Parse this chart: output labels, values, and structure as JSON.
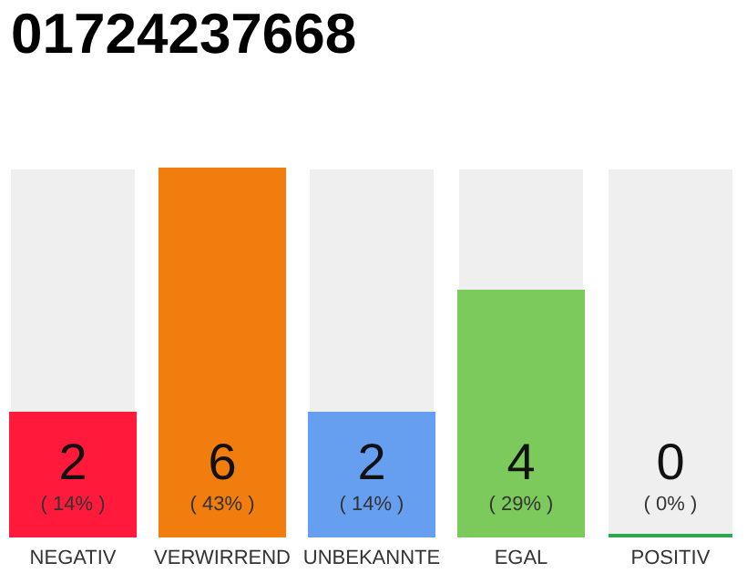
{
  "chart_data": {
    "type": "bar",
    "title": "01724237668",
    "categories": [
      "NEGATIV",
      "VERWIRREND",
      "UNBEKANNTE",
      "EGAL",
      "POSITIV"
    ],
    "values": [
      2,
      6,
      2,
      4,
      0
    ],
    "colors": [
      "#ff1a3c",
      "#f07d0e",
      "#679ff0",
      "#7cca5c",
      "#2ea84f"
    ],
    "value_labels": [
      "2",
      "6",
      "2",
      "4",
      "0"
    ],
    "annotations": [
      "( 14% )",
      "( 43% )",
      "( 14% )",
      "( 29% )",
      "( 0% )"
    ]
  }
}
